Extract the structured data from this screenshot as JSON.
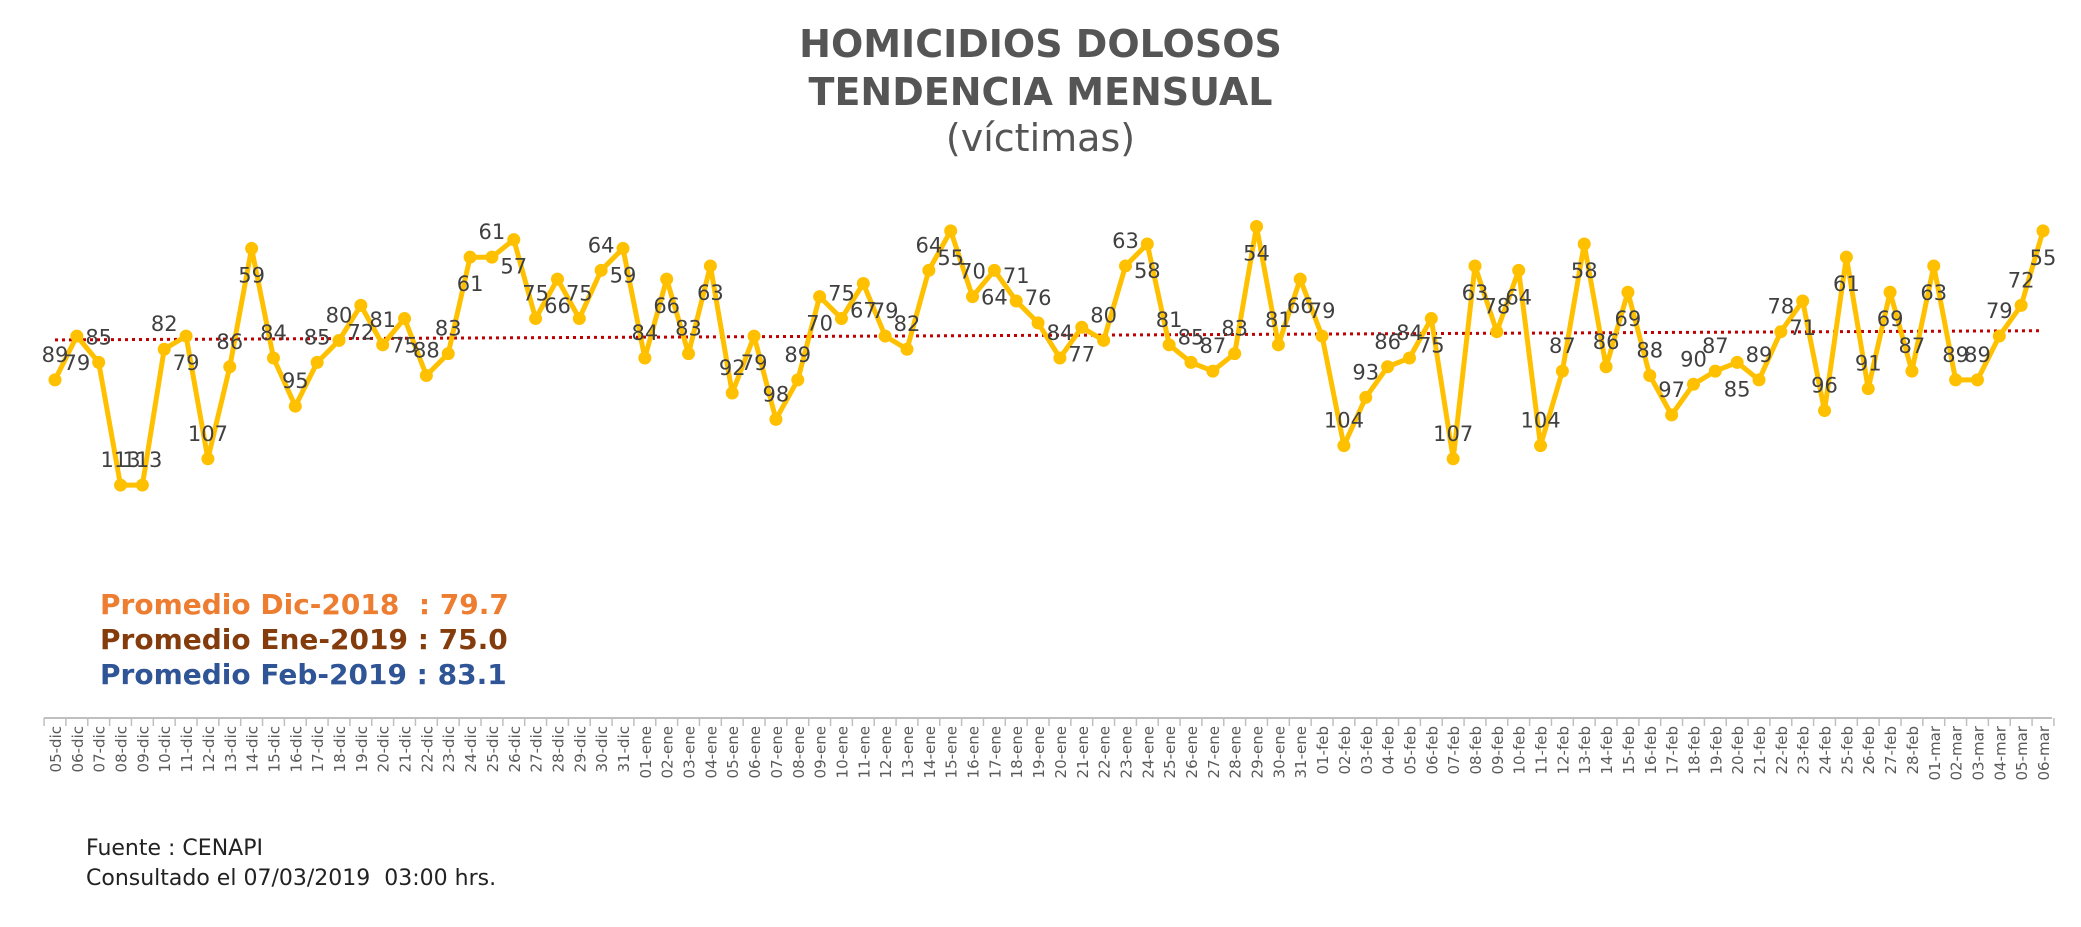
{
  "title": "HOMICIDIOS DOLOSOS",
  "subtitle": "TENDENCIA MENSUAL",
  "unit_label": "(víctimas)",
  "averages": [
    {
      "label": "Promedio Dic-2018  : 79.7",
      "color": "#ED7D31"
    },
    {
      "label": "Promedio Ene-2019 : 75.0",
      "color": "#843C0C"
    },
    {
      "label": "Promedio Feb-2019 : 83.1",
      "color": "#2F5597"
    }
  ],
  "source": "Fuente : CENAPI",
  "consulted": "Consultado el 07/03/2019  03:00 hrs.",
  "colors": {
    "line": "#FFC000",
    "trend": "#C00000",
    "text": "#404040",
    "axis": "#BFBFBF"
  },
  "chart_data": {
    "type": "line",
    "x": [
      "05-dic",
      "06-dic",
      "07-dic",
      "08-dic",
      "09-dic",
      "10-dic",
      "11-dic",
      "12-dic",
      "13-dic",
      "14-dic",
      "15-dic",
      "16-dic",
      "17-dic",
      "18-dic",
      "19-dic",
      "20-dic",
      "21-dic",
      "22-dic",
      "23-dic",
      "24-dic",
      "25-dic",
      "26-dic",
      "27-dic",
      "28-dic",
      "29-dic",
      "30-dic",
      "31-dic",
      "01-ene",
      "02-ene",
      "03-ene",
      "04-ene",
      "05-ene",
      "06-ene",
      "07-ene",
      "08-ene",
      "09-ene",
      "10-ene",
      "11-ene",
      "12-ene",
      "13-ene",
      "14-ene",
      "15-ene",
      "16-ene",
      "17-ene",
      "18-ene",
      "19-ene",
      "20-ene",
      "21-ene",
      "22-ene",
      "23-ene",
      "24-ene",
      "25-ene",
      "26-ene",
      "27-ene",
      "28-ene",
      "29-ene",
      "30-ene",
      "31-ene",
      "01-feb",
      "02-feb",
      "03-feb",
      "04-feb",
      "05-feb",
      "06-feb",
      "07-feb",
      "08-feb",
      "09-feb",
      "10-feb",
      "11-feb",
      "12-feb",
      "13-feb",
      "14-feb",
      "15-feb",
      "16-feb",
      "17-feb",
      "18-feb",
      "19-feb",
      "20-feb",
      "21-feb",
      "22-feb",
      "23-feb",
      "24-feb",
      "25-feb",
      "26-feb",
      "27-feb",
      "28-feb",
      "01-mar",
      "02-mar",
      "03-mar",
      "04-mar",
      "05-mar",
      "06-mar"
    ],
    "values": [
      89,
      79,
      85,
      113,
      113,
      82,
      79,
      107,
      86,
      59,
      84,
      95,
      85,
      80,
      72,
      81,
      75,
      88,
      83,
      61,
      61,
      57,
      75,
      66,
      75,
      64,
      59,
      84,
      66,
      83,
      63,
      92,
      79,
      98,
      89,
      70,
      75,
      67,
      79,
      82,
      64,
      55,
      70,
      64,
      71,
      76,
      84,
      77,
      80,
      63,
      58,
      81,
      85,
      87,
      83,
      54,
      81,
      66,
      79,
      104,
      93,
      86,
      84,
      75,
      107,
      63,
      78,
      64,
      104,
      87,
      58,
      86,
      69,
      88,
      97,
      90,
      87,
      85,
      89,
      78,
      71,
      96,
      61,
      91,
      69,
      87,
      63,
      89,
      89,
      79,
      72,
      55
    ],
    "ylim": [
      40,
      125
    ],
    "trend": {
      "type": "linear",
      "style": "dotted"
    },
    "grid": false,
    "legend": "none"
  }
}
